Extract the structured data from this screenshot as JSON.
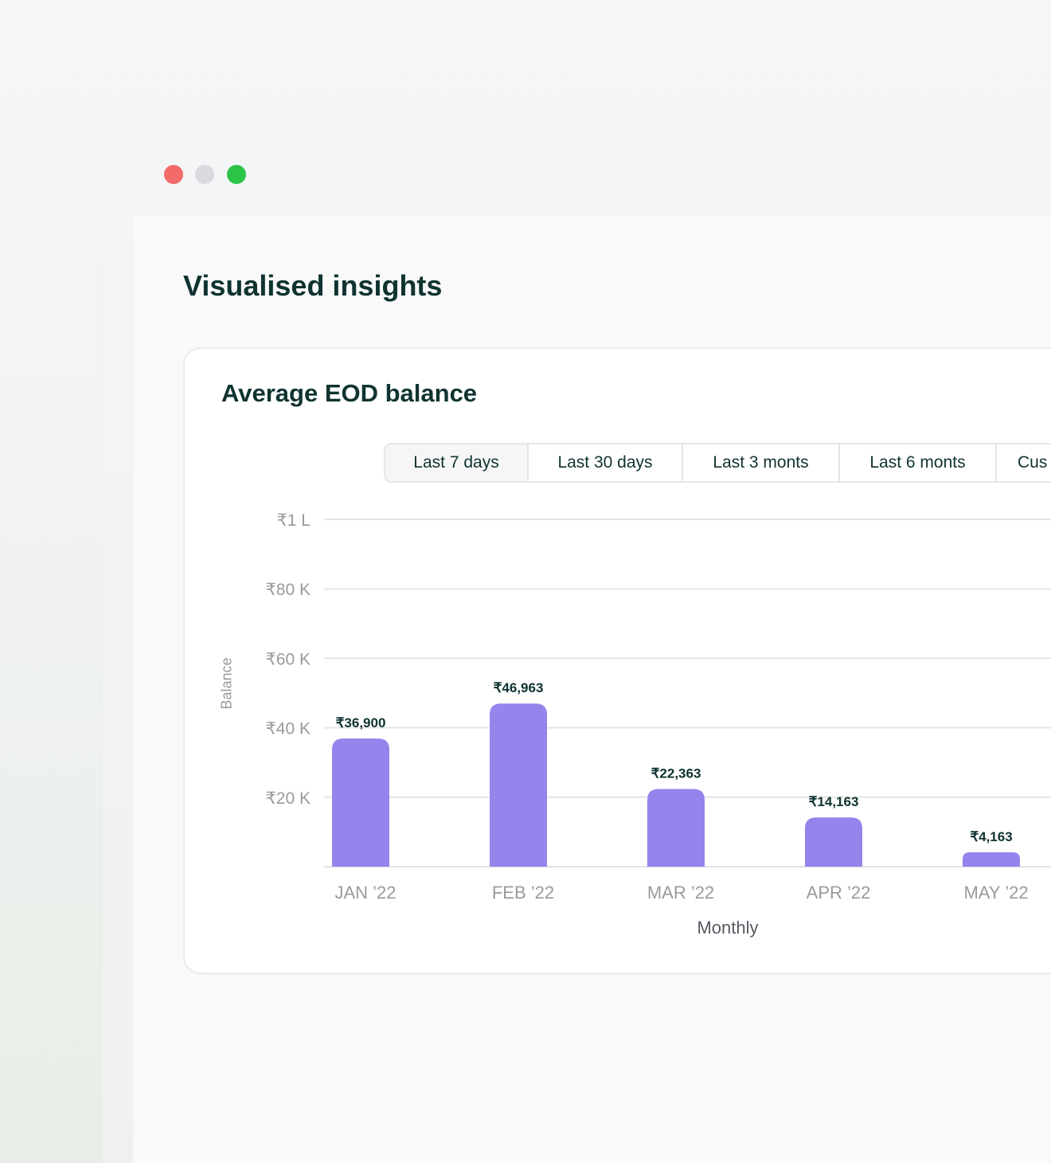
{
  "window": {
    "controls": [
      "close",
      "minimize",
      "maximize"
    ]
  },
  "page": {
    "title": "Visualised insights"
  },
  "card": {
    "title": "Average EOD balance",
    "range_tabs": [
      "Last 7 days",
      "Last 30 days",
      "Last 3 monts",
      "Last 6 monts",
      "Cus"
    ]
  },
  "colors": {
    "bar": "#9584ec",
    "title": "#0f3331",
    "close": "#f26a6a",
    "minimize": "#d8dadd",
    "maximize": "#2cc447"
  },
  "chart_data": {
    "type": "bar",
    "title": "",
    "xlabel": "Monthly",
    "ylabel": "Balance",
    "categories": [
      "JAN ’22",
      "FEB ’22",
      "MAR ’22",
      "APR ’22",
      "MAY ’22"
    ],
    "values": [
      36900,
      46963,
      22363,
      14163,
      4163
    ],
    "data_labels": [
      "₹36,900",
      "₹46,963",
      "₹22,363",
      "₹14,163",
      "₹4,163"
    ],
    "yticks": [
      {
        "value": 20000,
        "label": "₹20 K"
      },
      {
        "value": 40000,
        "label": "₹40 K"
      },
      {
        "value": 60000,
        "label": "₹60 K"
      },
      {
        "value": 80000,
        "label": "₹80 K"
      },
      {
        "value": 100000,
        "label": "₹1 L"
      }
    ],
    "ylim": [
      0,
      100000
    ],
    "grid": true,
    "legend": "none"
  }
}
